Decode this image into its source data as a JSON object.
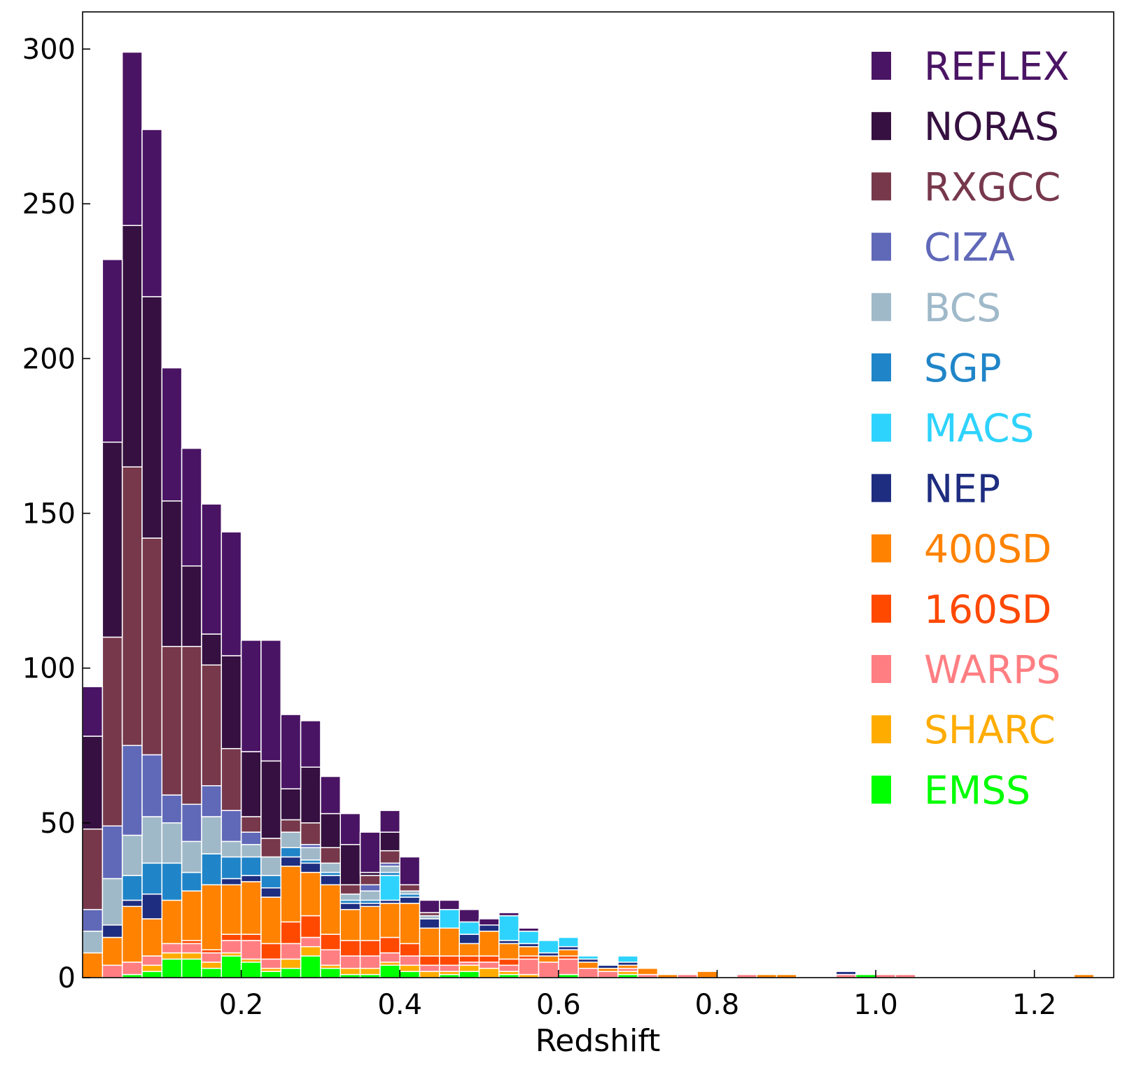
{
  "chart_data": {
    "type": "bar",
    "stacked": true,
    "title": "",
    "xlabel": "Redshift",
    "ylabel": "",
    "xlim": [
      0.0,
      1.3
    ],
    "ylim": [
      0,
      312
    ],
    "bin_width": 0.025,
    "x_start": 0.0,
    "xticks": [
      {
        "value": 0.2,
        "label": "0.2"
      },
      {
        "value": 0.4,
        "label": "0.4"
      },
      {
        "value": 0.6,
        "label": "0.6"
      },
      {
        "value": 0.8,
        "label": "0.8"
      },
      {
        "value": 1.0,
        "label": "1.0"
      },
      {
        "value": 1.2,
        "label": "1.2"
      }
    ],
    "yticks": [
      {
        "value": 0,
        "label": "0"
      },
      {
        "value": 50,
        "label": "50"
      },
      {
        "value": 100,
        "label": "100"
      },
      {
        "value": 150,
        "label": "150"
      },
      {
        "value": 200,
        "label": "200"
      },
      {
        "value": 250,
        "label": "250"
      },
      {
        "value": 300,
        "label": "300"
      }
    ],
    "legend_position": "top-right",
    "series_order_bottom_to_top": [
      "EMSS",
      "SHARC",
      "WARPS",
      "160SD",
      "400SD",
      "NEP",
      "MACS",
      "SGP",
      "BCS",
      "CIZA",
      "RXGCC",
      "NORAS",
      "REFLEX"
    ],
    "legend": [
      {
        "name": "REFLEX",
        "color": "#4a1464"
      },
      {
        "name": "NORAS",
        "color": "#351040"
      },
      {
        "name": "RXGCC",
        "color": "#77384c"
      },
      {
        "name": "CIZA",
        "color": "#6068b8"
      },
      {
        "name": "BCS",
        "color": "#9fb9c9"
      },
      {
        "name": "SGP",
        "color": "#2085c8"
      },
      {
        "name": "MACS",
        "color": "#2ed3fd"
      },
      {
        "name": "NEP",
        "color": "#1e2d80"
      },
      {
        "name": "400SD",
        "color": "#ff8200"
      },
      {
        "name": "160SD",
        "color": "#ff4800"
      },
      {
        "name": "WARPS",
        "color": "#ff7e82"
      },
      {
        "name": "SHARC",
        "color": "#ffac00"
      },
      {
        "name": "EMSS",
        "color": "#00ff00"
      }
    ],
    "series": [
      {
        "name": "EMSS",
        "color": "#00ff00",
        "values": [
          0,
          0,
          1,
          2,
          6,
          6,
          3,
          7,
          5,
          2,
          3,
          7,
          3,
          1,
          1,
          4,
          2,
          0,
          1,
          2,
          0,
          1,
          0,
          0,
          1,
          0,
          0,
          1,
          0,
          0,
          0,
          0,
          0,
          0,
          0,
          0,
          0,
          0,
          0,
          1,
          0,
          0,
          0,
          0,
          0,
          0,
          0,
          0,
          0,
          0,
          0,
          0
        ]
      },
      {
        "name": "SHARC",
        "color": "#ffac00",
        "values": [
          0,
          0,
          0,
          2,
          2,
          2,
          2,
          1,
          1,
          1,
          3,
          3,
          1,
          2,
          2,
          1,
          2,
          2,
          1,
          2,
          3,
          1,
          1,
          0,
          0,
          0,
          0,
          1,
          0,
          0,
          0,
          0,
          0,
          0,
          0,
          0,
          0,
          0,
          0,
          0,
          0,
          0,
          0,
          0,
          0,
          0,
          0,
          0,
          0,
          0,
          0,
          0
        ]
      },
      {
        "name": "WARPS",
        "color": "#ff7e82",
        "values": [
          0,
          4,
          4,
          3,
          3,
          3,
          3,
          4,
          6,
          3,
          5,
          3,
          5,
          4,
          4,
          3,
          3,
          2,
          2,
          1,
          2,
          2,
          5,
          5,
          5,
          3,
          2,
          1,
          1,
          0,
          1,
          0,
          0,
          1,
          0,
          0,
          0,
          0,
          1,
          0,
          1,
          1,
          0,
          0,
          0,
          0,
          0,
          0,
          0,
          0,
          0,
          0
        ]
      },
      {
        "name": "160SD",
        "color": "#ff4800",
        "values": [
          0,
          0,
          0,
          0,
          0,
          1,
          1,
          2,
          2,
          5,
          7,
          7,
          5,
          5,
          5,
          5,
          4,
          3,
          3,
          2,
          2,
          2,
          1,
          0,
          1,
          0,
          0,
          0,
          0,
          0,
          0,
          0,
          0,
          0,
          0,
          0,
          0,
          0,
          0,
          0,
          0,
          0,
          0,
          0,
          0,
          0,
          0,
          0,
          0,
          0,
          0,
          0
        ]
      },
      {
        "name": "400SD",
        "color": "#ff8200",
        "values": [
          8,
          9,
          18,
          12,
          14,
          16,
          21,
          16,
          17,
          15,
          18,
          14,
          16,
          10,
          11,
          11,
          13,
          9,
          9,
          4,
          8,
          5,
          3,
          2,
          2,
          2,
          1,
          1,
          2,
          1,
          0,
          2,
          0,
          0,
          1,
          1,
          0,
          0,
          0,
          0,
          0,
          0,
          0,
          0,
          0,
          0,
          0,
          0,
          0,
          0,
          1,
          0
        ]
      },
      {
        "name": "NEP",
        "color": "#1e2d80",
        "values": [
          0,
          4,
          2,
          8,
          0,
          0,
          0,
          2,
          2,
          3,
          3,
          3,
          3,
          2,
          1,
          1,
          2,
          3,
          0,
          3,
          2,
          1,
          1,
          1,
          1,
          1,
          1,
          1,
          0,
          0,
          0,
          0,
          0,
          0,
          0,
          0,
          0,
          0,
          1,
          0,
          0,
          0,
          0,
          0,
          0,
          0,
          0,
          0,
          0,
          0,
          0,
          0
        ]
      },
      {
        "name": "MACS",
        "color": "#2ed3fd",
        "values": [
          0,
          0,
          0,
          0,
          0,
          0,
          0,
          0,
          0,
          0,
          0,
          0,
          0,
          0,
          0,
          8,
          0,
          0,
          6,
          4,
          0,
          8,
          4,
          4,
          3,
          1,
          0,
          2,
          0,
          0,
          0,
          0,
          0,
          0,
          0,
          0,
          0,
          0,
          0,
          0,
          0,
          0,
          0,
          0,
          0,
          0,
          0,
          0,
          0,
          0,
          0,
          0
        ]
      },
      {
        "name": "SGP",
        "color": "#2085c8",
        "values": [
          0,
          0,
          8,
          10,
          12,
          6,
          10,
          7,
          6,
          4,
          3,
          1,
          1,
          1,
          1,
          1,
          1,
          0,
          0,
          0,
          0,
          0,
          0,
          0,
          0,
          0,
          0,
          0,
          0,
          0,
          0,
          0,
          0,
          0,
          0,
          0,
          0,
          0,
          0,
          0,
          0,
          0,
          0,
          0,
          0,
          0,
          0,
          0,
          0,
          0,
          0,
          0
        ]
      },
      {
        "name": "BCS",
        "color": "#9fb9c9",
        "values": [
          7,
          15,
          13,
          15,
          13,
          10,
          12,
          5,
          4,
          6,
          5,
          4,
          3,
          2,
          3,
          2,
          1,
          1,
          0,
          0,
          0,
          0,
          0,
          0,
          0,
          0,
          0,
          0,
          0,
          0,
          0,
          0,
          0,
          0,
          0,
          0,
          0,
          0,
          0,
          0,
          0,
          0,
          0,
          0,
          0,
          0,
          0,
          0,
          0,
          0,
          0,
          0
        ]
      },
      {
        "name": "CIZA",
        "color": "#6068b8",
        "values": [
          7,
          17,
          29,
          20,
          9,
          12,
          10,
          10,
          4,
          0,
          0,
          1,
          0,
          0,
          2,
          1,
          0,
          0,
          0,
          0,
          0,
          0,
          0,
          0,
          0,
          0,
          0,
          0,
          0,
          0,
          0,
          0,
          0,
          0,
          0,
          0,
          0,
          0,
          0,
          0,
          0,
          0,
          0,
          0,
          0,
          0,
          0,
          0,
          0,
          0,
          0,
          0
        ]
      },
      {
        "name": "RXGCC",
        "color": "#77384c",
        "values": [
          26,
          61,
          90,
          70,
          48,
          51,
          39,
          20,
          5,
          6,
          4,
          7,
          5,
          3,
          3,
          4,
          2,
          1,
          0,
          0,
          0,
          0,
          0,
          0,
          0,
          0,
          0,
          0,
          0,
          0,
          0,
          0,
          0,
          0,
          0,
          0,
          0,
          0,
          0,
          0,
          0,
          0,
          0,
          0,
          0,
          0,
          0,
          0,
          0,
          0,
          0,
          0
        ]
      },
      {
        "name": "NORAS",
        "color": "#351040",
        "values": [
          30,
          63,
          78,
          78,
          47,
          26,
          10,
          30,
          21,
          25,
          10,
          18,
          11,
          13,
          1,
          6,
          0,
          0,
          0,
          0,
          0,
          0,
          0,
          0,
          0,
          0,
          0,
          0,
          0,
          0,
          0,
          0,
          0,
          0,
          0,
          0,
          0,
          0,
          0,
          0,
          0,
          0,
          0,
          0,
          0,
          0,
          0,
          0,
          0,
          0,
          0,
          0
        ]
      },
      {
        "name": "REFLEX",
        "color": "#4a1464",
        "values": [
          16,
          59,
          56,
          54,
          43,
          38,
          42,
          40,
          36,
          39,
          24,
          15,
          12,
          10,
          13,
          7,
          9,
          4,
          3,
          4,
          2,
          1,
          1,
          0,
          0,
          0,
          0,
          0,
          0,
          0,
          0,
          0,
          0,
          0,
          0,
          0,
          0,
          0,
          0,
          0,
          0,
          0,
          0,
          0,
          0,
          0,
          0,
          0,
          0,
          0,
          0,
          0
        ]
      }
    ]
  }
}
